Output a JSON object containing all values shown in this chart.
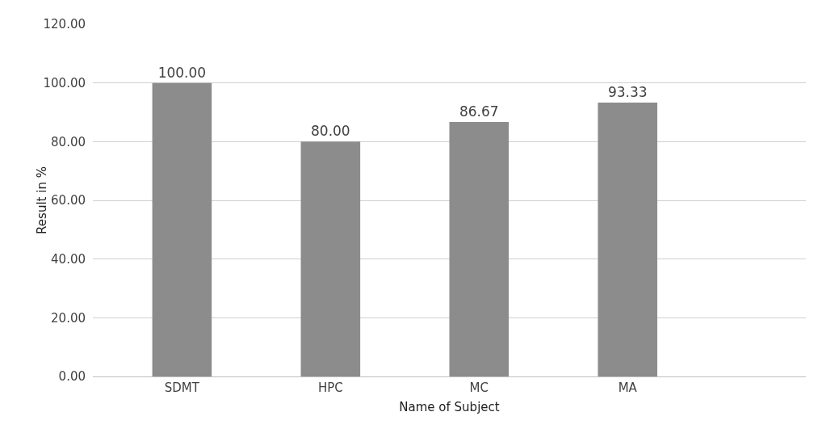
{
  "chart_data": {
    "type": "bar",
    "xlabel": "Name of Subject",
    "ylabel": "Result in %",
    "categories": [
      "SDMT",
      "HPC",
      "MC",
      "MA"
    ],
    "values": [
      100,
      80,
      86.67,
      93.33
    ],
    "value_labels": [
      "100.00",
      "80.00",
      "86.67",
      "93.33"
    ],
    "color": "#8c8c8c",
    "ylim": [
      0,
      120
    ],
    "yticks": [
      {
        "value": 0,
        "label": "0.00"
      },
      {
        "value": 20,
        "label": "20.00"
      },
      {
        "value": 40,
        "label": "40.00"
      },
      {
        "value": 60,
        "label": "60.00"
      },
      {
        "value": 80,
        "label": "80.00"
      },
      {
        "value": 100,
        "label": "100.00"
      },
      {
        "value": 120,
        "label": "120.00"
      }
    ],
    "grid": "y"
  }
}
